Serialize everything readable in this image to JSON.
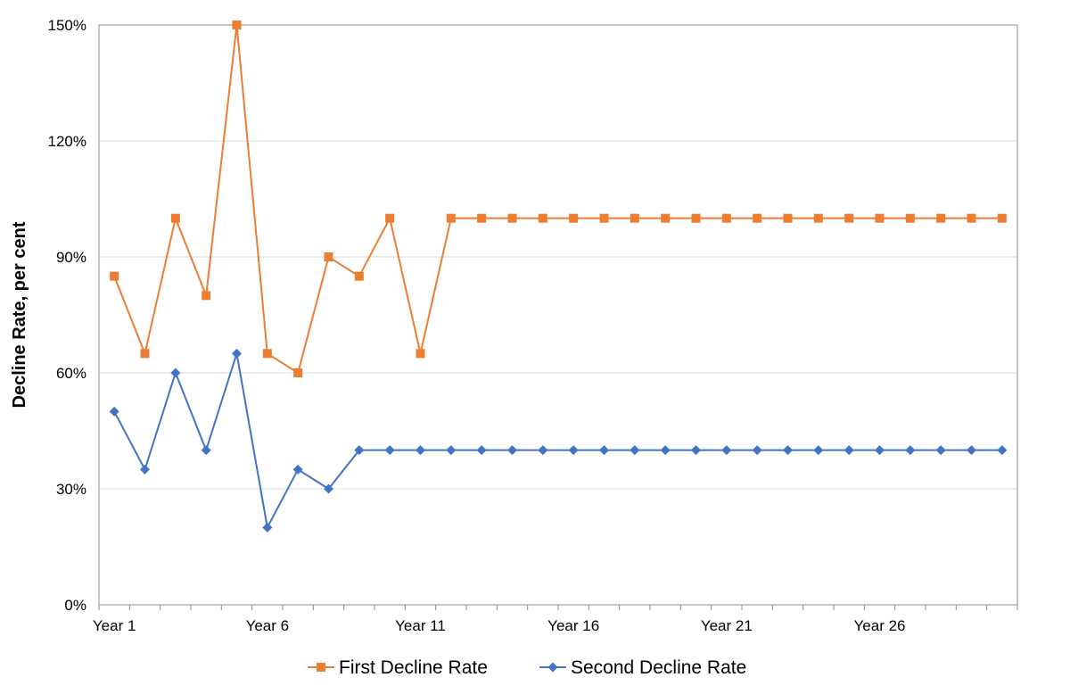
{
  "chart_data": {
    "type": "line",
    "ylabel": "Decline Rate, per cent",
    "xlabel": "",
    "title": "",
    "ylim": [
      0,
      150
    ],
    "yticks": [
      "0%",
      "30%",
      "60%",
      "90%",
      "120%",
      "150%"
    ],
    "ytick_values": [
      0,
      30,
      60,
      90,
      120,
      150
    ],
    "x": [
      "Year 1",
      "Year 2",
      "Year 3",
      "Year 4",
      "Year 5",
      "Year 6",
      "Year 7",
      "Year 8",
      "Year 9",
      "Year 10",
      "Year 11",
      "Year 12",
      "Year 13",
      "Year 14",
      "Year 15",
      "Year 16",
      "Year 17",
      "Year 18",
      "Year 19",
      "Year 20",
      "Year 21",
      "Year 22",
      "Year 23",
      "Year 24",
      "Year 25",
      "Year 26",
      "Year 27",
      "Year 28",
      "Year 29",
      "Year 30"
    ],
    "xtick_labels": [
      "Year 1",
      "Year 6",
      "Year 11",
      "Year 16",
      "Year 21",
      "Year 26"
    ],
    "grid": true,
    "legend_position": "bottom",
    "series": [
      {
        "name": "First Decline Rate",
        "color": "#ED7D31",
        "marker": "square",
        "values": [
          85,
          65,
          100,
          80,
          150,
          65,
          60,
          90,
          85,
          100,
          65,
          100,
          100,
          100,
          100,
          100,
          100,
          100,
          100,
          100,
          100,
          100,
          100,
          100,
          100,
          100,
          100,
          100,
          100,
          100
        ]
      },
      {
        "name": "Second Decline Rate",
        "color": "#4472C4",
        "marker": "diamond",
        "values": [
          50,
          35,
          60,
          40,
          65,
          20,
          35,
          30,
          40,
          40,
          40,
          40,
          40,
          40,
          40,
          40,
          40,
          40,
          40,
          40,
          40,
          40,
          40,
          40,
          40,
          40,
          40,
          40,
          40,
          40
        ]
      }
    ]
  }
}
